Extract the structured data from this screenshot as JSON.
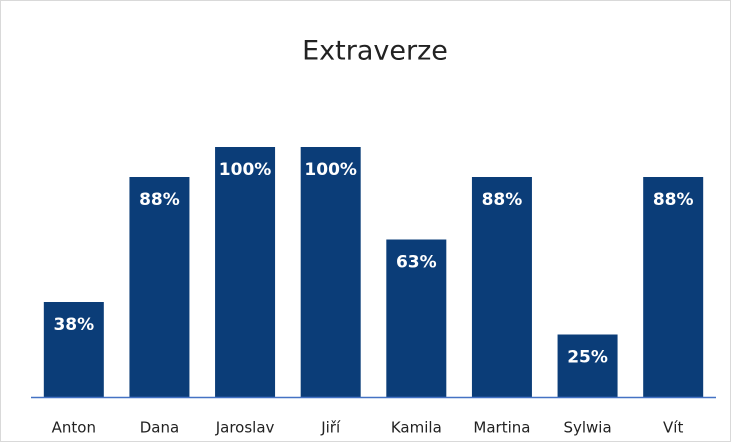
{
  "chart_data": {
    "type": "bar",
    "title": "Extraverze",
    "categories": [
      "Anton",
      "Dana",
      "Jaroslav",
      "Jiří",
      "Kamila",
      "Martina",
      "Sylwia",
      "Vít"
    ],
    "values": [
      38,
      88,
      100,
      100,
      63,
      88,
      25,
      88
    ],
    "value_labels": [
      "38%",
      "88%",
      "100%",
      "100%",
      "63%",
      "88%",
      "25%",
      "88%"
    ],
    "color": "#0b3d78"
  }
}
